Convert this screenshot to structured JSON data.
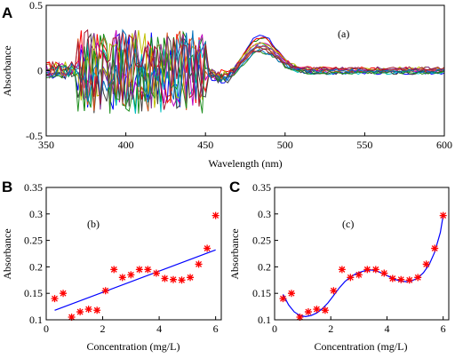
{
  "figure": {
    "panel_letters": [
      "A",
      "B",
      "C"
    ]
  },
  "colors": {
    "spectra": [
      "#0000ff",
      "#008000",
      "#ff0000",
      "#00bfbf",
      "#bf00bf",
      "#bfbf00",
      "#404040",
      "#d95319",
      "#7e2f8e",
      "#1f8f1f",
      "#0072bd",
      "#a2142f"
    ],
    "markers": "#ff0000",
    "fit": "#0000ff"
  },
  "chart_data": [
    {
      "type": "line",
      "annotation": "(a)",
      "xlabel": "Wavelength (nm)",
      "ylabel": "Absorbance",
      "xlim": [
        350,
        600
      ],
      "ylim": [
        -0.5,
        0.5
      ],
      "xticks": [
        350,
        400,
        450,
        500,
        550,
        600
      ],
      "yticks": [
        -0.5,
        0,
        0.5
      ],
      "xtick_labels": [
        "350",
        "400",
        "450",
        "500",
        "550",
        "600"
      ],
      "ytick_labels": [
        "-0.5",
        "0",
        "0.5"
      ],
      "grid": false,
      "series_count": 12,
      "peak_x": 485,
      "peak_heights": [
        0.29,
        0.25,
        0.24,
        0.22,
        0.21,
        0.2,
        0.19,
        0.18,
        0.17,
        0.16,
        0.15,
        0.14
      ],
      "noise_region": [
        370,
        450
      ],
      "noise_amplitude": 0.45
    },
    {
      "type": "scatter",
      "annotation": "(b)",
      "xlabel": "Concentration (mg/L)",
      "ylabel": "Absorbance",
      "xlim": [
        0,
        6.2
      ],
      "ylim": [
        0.1,
        0.35
      ],
      "xticks": [
        0,
        2,
        4,
        6
      ],
      "yticks": [
        0.1,
        0.15,
        0.2,
        0.25,
        0.3,
        0.35
      ],
      "xtick_labels": [
        "0",
        "2",
        "4",
        "6"
      ],
      "ytick_labels": [
        "0.1",
        "0.15",
        "0.2",
        "0.25",
        "0.3",
        "0.35"
      ],
      "grid": false,
      "x": [
        0.3,
        0.6,
        0.9,
        1.2,
        1.5,
        1.8,
        2.1,
        2.4,
        2.7,
        3.0,
        3.3,
        3.6,
        3.9,
        4.2,
        4.5,
        4.8,
        5.1,
        5.4,
        5.7,
        6.0
      ],
      "y": [
        0.14,
        0.15,
        0.105,
        0.115,
        0.12,
        0.118,
        0.155,
        0.195,
        0.18,
        0.185,
        0.195,
        0.195,
        0.188,
        0.178,
        0.176,
        0.175,
        0.18,
        0.205,
        0.235,
        0.297
      ],
      "fit_line": {
        "x": [
          0.3,
          6.0
        ],
        "y": [
          0.118,
          0.232
        ]
      }
    },
    {
      "type": "scatter",
      "annotation": "(c)",
      "xlabel": "Concentration (mg/L)",
      "ylabel": "Absorbance",
      "xlim": [
        0,
        6.2
      ],
      "ylim": [
        0.1,
        0.35
      ],
      "xticks": [
        0,
        2,
        4,
        6
      ],
      "yticks": [
        0.1,
        0.15,
        0.2,
        0.25,
        0.3,
        0.35
      ],
      "xtick_labels": [
        "0",
        "2",
        "4",
        "6"
      ],
      "ytick_labels": [
        "0.1",
        "0.15",
        "0.2",
        "0.25",
        "0.3",
        "0.35"
      ],
      "grid": false,
      "x": [
        0.3,
        0.6,
        0.9,
        1.2,
        1.5,
        1.8,
        2.1,
        2.4,
        2.7,
        3.0,
        3.3,
        3.6,
        3.9,
        4.2,
        4.5,
        4.8,
        5.1,
        5.4,
        5.7,
        6.0
      ],
      "y": [
        0.14,
        0.15,
        0.105,
        0.115,
        0.12,
        0.118,
        0.155,
        0.195,
        0.18,
        0.185,
        0.195,
        0.195,
        0.188,
        0.178,
        0.176,
        0.175,
        0.18,
        0.205,
        0.235,
        0.297
      ],
      "fit_curve": {
        "x": [
          0.3,
          0.5,
          0.7,
          0.9,
          1.1,
          1.3,
          1.5,
          1.7,
          1.9,
          2.1,
          2.3,
          2.5,
          2.7,
          2.9,
          3.1,
          3.3,
          3.5,
          3.7,
          3.9,
          4.1,
          4.3,
          4.5,
          4.7,
          4.9,
          5.1,
          5.3,
          5.5,
          5.7,
          5.9,
          6.0
        ],
        "y": [
          0.148,
          0.128,
          0.115,
          0.108,
          0.106,
          0.108,
          0.113,
          0.121,
          0.132,
          0.146,
          0.16,
          0.172,
          0.181,
          0.187,
          0.191,
          0.194,
          0.194,
          0.191,
          0.186,
          0.181,
          0.176,
          0.173,
          0.172,
          0.174,
          0.179,
          0.189,
          0.204,
          0.228,
          0.265,
          0.297
        ]
      }
    }
  ]
}
